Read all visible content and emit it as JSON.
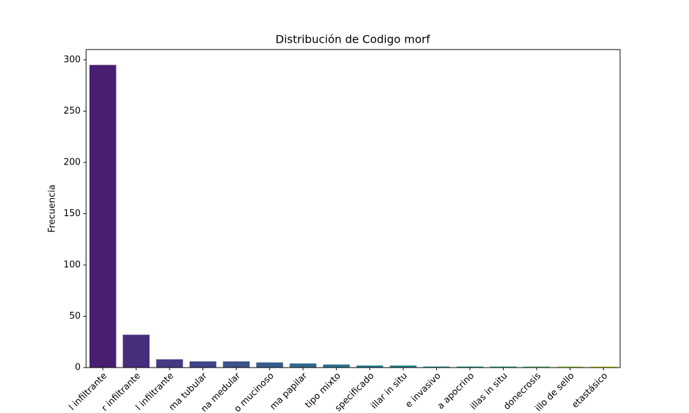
{
  "chart_data": {
    "type": "bar",
    "title": "Distribución de Codigo morf",
    "y_label": "Frecuencia",
    "categories": [
      "l infiltrante",
      "r infiltrante",
      "l infiltrante",
      "ma tubular",
      "na medular",
      "o mucinoso",
      "ma papilar",
      "tipo mixto",
      "specificado",
      "illar in situ",
      "e invasivo",
      "a apocrino",
      "illas in situ",
      "donecrosis",
      "illo de sello",
      "etastásico"
    ],
    "values": [
      295,
      32,
      8,
      6,
      6,
      5,
      4,
      3,
      2,
      2,
      1,
      1,
      1,
      1,
      1,
      1
    ],
    "colors": [
      "#481f70",
      "#472d7b",
      "#443a83",
      "#404688",
      "#3b528b",
      "#365d8d",
      "#31688e",
      "#2c728e",
      "#287c8e",
      "#24868e",
      "#21918c",
      "#1f9a8a",
      "#2ab07f",
      "#52c569",
      "#a5db36",
      "#d8e219"
    ],
    "ylim": [
      0,
      310
    ],
    "yticks": [
      0,
      50,
      100,
      150,
      200,
      250,
      300
    ],
    "grid": false
  }
}
